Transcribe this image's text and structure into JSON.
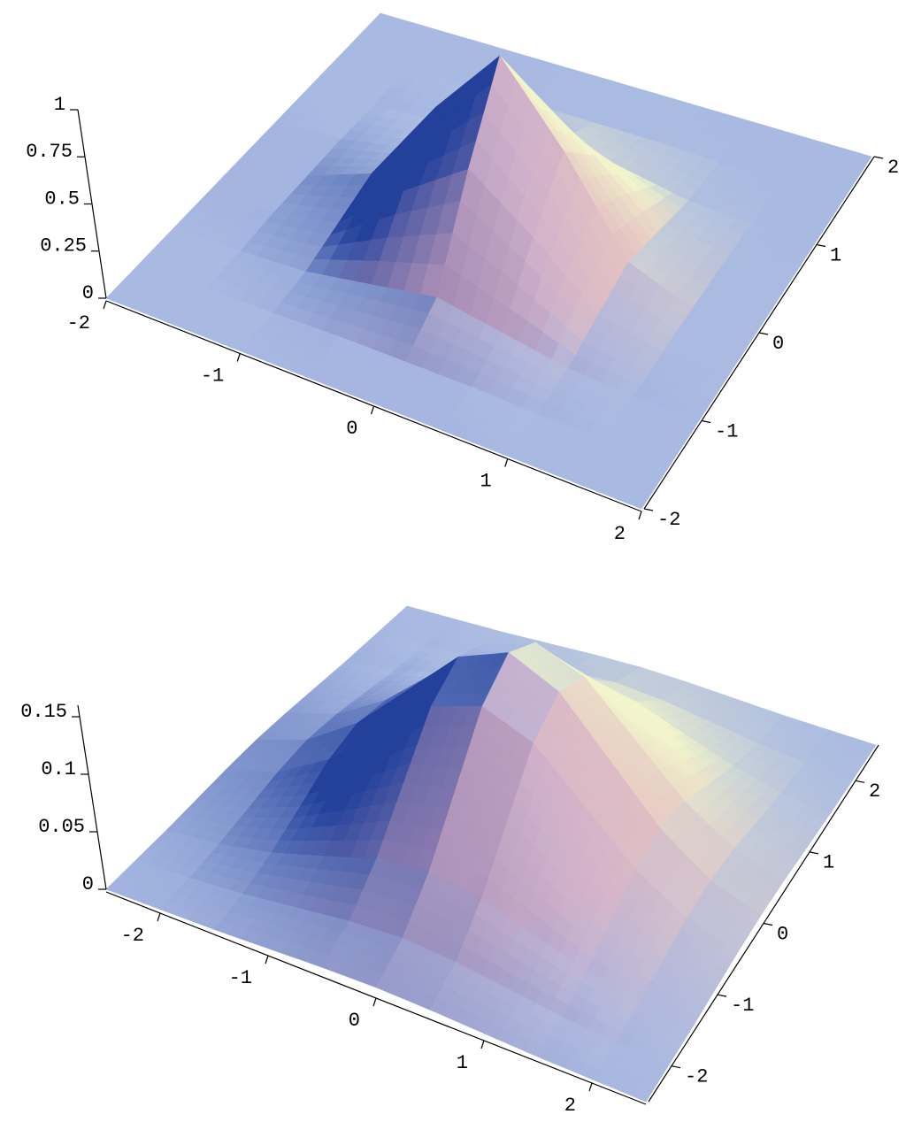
{
  "chart_data": [
    {
      "type": "surface",
      "x": [
        -2,
        -1.5,
        -1,
        -0.5,
        0,
        0.5,
        1,
        1.5,
        2
      ],
      "y": [
        -2,
        -1.5,
        -1,
        -0.5,
        0,
        0.5,
        1,
        1.5,
        2
      ],
      "z": [
        [
          0,
          0,
          0,
          0,
          0,
          0,
          0,
          0,
          0
        ],
        [
          0,
          0,
          0,
          0.01,
          0.01,
          0.01,
          0,
          0,
          0
        ],
        [
          0,
          0,
          0.02,
          0.08,
          0.14,
          0.08,
          0.02,
          0,
          0
        ],
        [
          0,
          0.01,
          0.08,
          0.37,
          0.61,
          0.37,
          0.08,
          0.01,
          0
        ],
        [
          0,
          0.01,
          0.14,
          0.61,
          1,
          0.61,
          0.14,
          0.01,
          0
        ],
        [
          0,
          0.01,
          0.08,
          0.37,
          0.61,
          0.37,
          0.08,
          0.01,
          0
        ],
        [
          0,
          0,
          0.02,
          0.08,
          0.14,
          0.08,
          0.02,
          0,
          0
        ],
        [
          0,
          0,
          0,
          0.01,
          0.01,
          0.01,
          0,
          0,
          0
        ],
        [
          0,
          0,
          0,
          0,
          0,
          0,
          0,
          0,
          0
        ]
      ],
      "xlim": [
        -2,
        2
      ],
      "ylim": [
        -2,
        2
      ],
      "zlim": [
        0,
        1
      ],
      "xticks": [
        -2,
        -1,
        0,
        1,
        2
      ],
      "yticks": [
        -2,
        -1,
        0,
        1,
        2
      ],
      "zticks": [
        0,
        0.25,
        0.5,
        0.75,
        1
      ]
    },
    {
      "type": "surface",
      "x": [
        -2.5,
        -2,
        -1.5,
        -1,
        -0.5,
        0,
        0.5,
        1,
        1.5,
        2,
        2.5
      ],
      "y": [
        -2.5,
        -2,
        -1.5,
        -1,
        -0.5,
        0,
        0.5,
        1,
        1.5,
        2,
        2.5
      ],
      "z": [
        [
          0,
          0.001,
          0.002,
          0.004,
          0.006,
          0.007,
          0.006,
          0.004,
          0.002,
          0.001,
          0
        ],
        [
          0.001,
          0.003,
          0.007,
          0.013,
          0.019,
          0.022,
          0.019,
          0.013,
          0.007,
          0.003,
          0.001
        ],
        [
          0.002,
          0.007,
          0.017,
          0.031,
          0.046,
          0.052,
          0.046,
          0.031,
          0.017,
          0.007,
          0.002
        ],
        [
          0.004,
          0.013,
          0.031,
          0.058,
          0.085,
          0.096,
          0.085,
          0.058,
          0.031,
          0.013,
          0.004
        ],
        [
          0.006,
          0.019,
          0.046,
          0.085,
          0.124,
          0.14,
          0.124,
          0.085,
          0.046,
          0.019,
          0.006
        ],
        [
          0.007,
          0.022,
          0.052,
          0.096,
          0.14,
          0.159,
          0.14,
          0.096,
          0.052,
          0.022,
          0.007
        ],
        [
          0.006,
          0.019,
          0.046,
          0.085,
          0.124,
          0.14,
          0.124,
          0.085,
          0.046,
          0.019,
          0.006
        ],
        [
          0.004,
          0.013,
          0.031,
          0.058,
          0.085,
          0.096,
          0.085,
          0.058,
          0.031,
          0.013,
          0.004
        ],
        [
          0.002,
          0.007,
          0.017,
          0.031,
          0.046,
          0.052,
          0.046,
          0.031,
          0.017,
          0.007,
          0.002
        ],
        [
          0.001,
          0.003,
          0.007,
          0.013,
          0.019,
          0.022,
          0.019,
          0.013,
          0.007,
          0.003,
          0.001
        ],
        [
          0,
          0.001,
          0.002,
          0.004,
          0.006,
          0.007,
          0.006,
          0.004,
          0.002,
          0.001,
          0
        ]
      ],
      "xlim": [
        -2.5,
        2.5
      ],
      "ylim": [
        -2.5,
        2.5
      ],
      "zlim": [
        0,
        0.16
      ],
      "xticks": [
        -2,
        -1,
        0,
        1,
        2
      ],
      "yticks": [
        -2,
        -1,
        0,
        1,
        2
      ],
      "zticks": [
        0,
        0.05,
        0.1,
        0.15
      ]
    }
  ]
}
